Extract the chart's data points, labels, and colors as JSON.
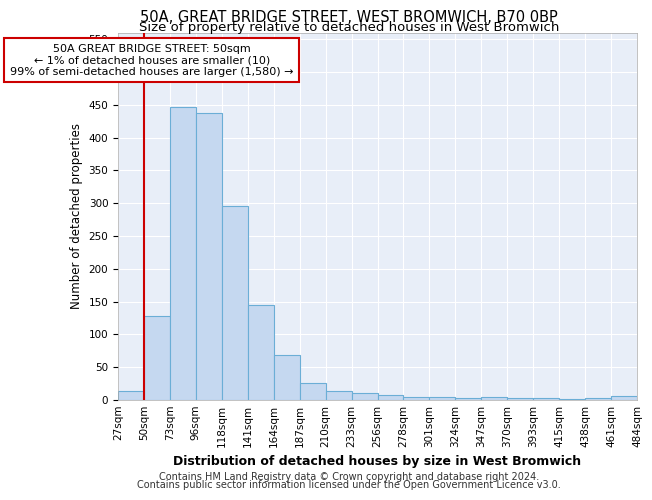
{
  "title1": "50A, GREAT BRIDGE STREET, WEST BROMWICH, B70 0BP",
  "title2": "Size of property relative to detached houses in West Bromwich",
  "xlabel": "Distribution of detached houses by size in West Bromwich",
  "ylabel": "Number of detached properties",
  "footer1": "Contains HM Land Registry data © Crown copyright and database right 2024.",
  "footer2": "Contains public sector information licensed under the Open Government Licence v3.0.",
  "annotation_line1": "50A GREAT BRIDGE STREET: 50sqm",
  "annotation_line2": "← 1% of detached houses are smaller (10)",
  "annotation_line3": "99% of semi-detached houses are larger (1,580) →",
  "bar_values": [
    13,
    128,
    447,
    438,
    295,
    145,
    69,
    26,
    13,
    10,
    7,
    5,
    4,
    3,
    5,
    3,
    3,
    2,
    3,
    6
  ],
  "bin_labels": [
    "27sqm",
    "50sqm",
    "73sqm",
    "96sqm",
    "118sqm",
    "141sqm",
    "164sqm",
    "187sqm",
    "210sqm",
    "233sqm",
    "256sqm",
    "278sqm",
    "301sqm",
    "324sqm",
    "347sqm",
    "370sqm",
    "393sqm",
    "415sqm",
    "438sqm",
    "461sqm",
    "484sqm"
  ],
  "bar_color": "#c5d8f0",
  "bar_edge_color": "#6baed6",
  "vline_color": "#cc0000",
  "vline_x_index": 1,
  "annotation_box_color": "#cc0000",
  "annotation_fill": "#ffffff",
  "ylim": [
    0,
    560
  ],
  "yticks": [
    0,
    50,
    100,
    150,
    200,
    250,
    300,
    350,
    400,
    450,
    500,
    550
  ],
  "background_color": "#e8eef8",
  "grid_color": "#ffffff",
  "title1_fontsize": 10.5,
  "title2_fontsize": 9.5,
  "xlabel_fontsize": 9,
  "ylabel_fontsize": 8.5,
  "tick_fontsize": 7.5,
  "annotation_fontsize": 8,
  "footer_fontsize": 7
}
